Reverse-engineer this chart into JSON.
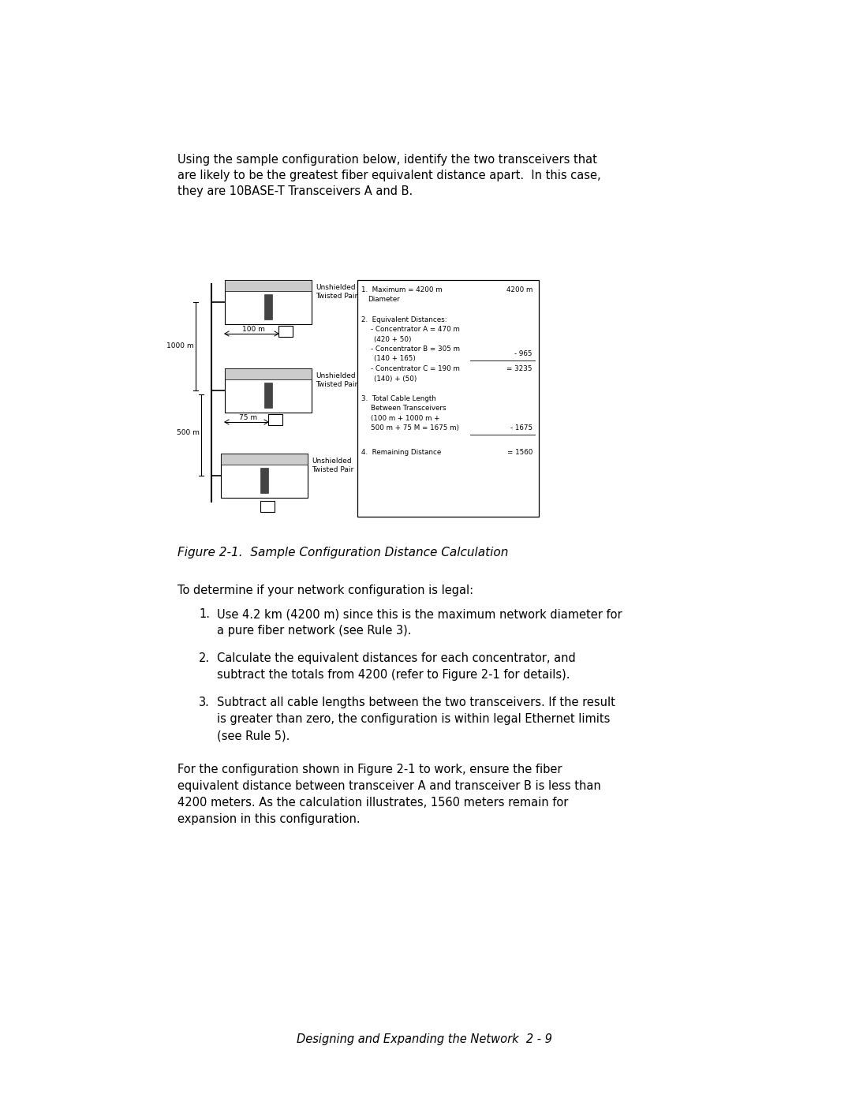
{
  "bg_color": "#ffffff",
  "intro_text_lines": [
    "Using the sample configuration below, identify the two transceivers that",
    "are likely to be the greatest fiber equivalent distance apart.  In this case,",
    "they are 10BASE-T Transceivers A and B."
  ],
  "figure_caption": "Figure 2-1.  Sample Configuration Distance Calculation",
  "to_determine_text": "To determine if your network configuration is legal:",
  "list_items": [
    [
      "Use 4.2 km (4200 m) since this is the maximum network diameter for",
      "a pure fiber network (see Rule 3)."
    ],
    [
      "Calculate the equivalent distances for each concentrator, and",
      "subtract the totals from 4200 (refer to Figure 2-1 for details)."
    ],
    [
      "Subtract all cable lengths between the two transceivers. If the result",
      "is greater than zero, the configuration is within legal Ethernet limits",
      "(see Rule 5)."
    ]
  ],
  "para_text_lines": [
    "For the configuration shown in Figure 2-1 to work, ensure the fiber",
    "equivalent distance between transceiver A and transceiver B is less than",
    "4200 meters. As the calculation illustrates, 1560 meters remain for",
    "expansion in this configuration."
  ],
  "footer_text": "Designing and Expanding the Network  2 - 9"
}
